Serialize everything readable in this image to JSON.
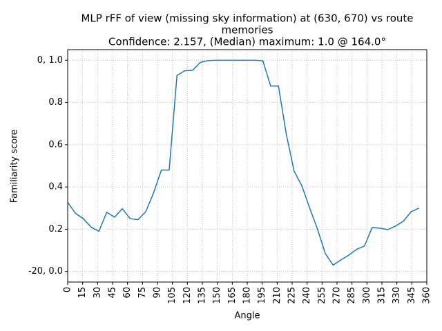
{
  "chart_data": {
    "type": "line",
    "title": [
      "MLP rFF of view (missing sky information) at (630, 670) vs route",
      "memories",
      "Confidence: 2.157, (Median) maximum: 1.0 @ 164.0°"
    ],
    "x_label": "Angle",
    "y_label": "Familiarity score",
    "x": [
      0,
      7.83,
      15.65,
      23.48,
      31.3,
      39.13,
      46.96,
      54.78,
      62.61,
      70.43,
      78.26,
      86.09,
      93.91,
      101.74,
      109.57,
      117.39,
      125.22,
      133.04,
      140.87,
      148.7,
      156.52,
      164.35,
      172.17,
      180,
      187.83,
      195.65,
      203.48,
      211.3,
      219.13,
      226.96,
      234.78,
      242.61,
      250.43,
      258.26,
      266.09,
      273.91,
      281.74,
      289.57,
      297.39,
      305.22,
      313.04,
      320.87,
      328.7,
      336.52,
      344.35,
      352.17
    ],
    "series": [
      {
        "color": "#1f77b4",
        "values": [
          0.327,
          0.275,
          0.25,
          0.21,
          0.19,
          0.28,
          0.257,
          0.297,
          0.25,
          0.245,
          0.283,
          0.372,
          0.48,
          0.48,
          0.928,
          0.95,
          0.952,
          0.99,
          0.998,
          1.0,
          1.0,
          1.0,
          1.0,
          1.0,
          1.0,
          0.997,
          0.878,
          0.878,
          0.65,
          0.475,
          0.405,
          0.3,
          0.2,
          0.085,
          0.03,
          0.055,
          0.077,
          0.105,
          0.12,
          0.208,
          0.205,
          0.198,
          0.215,
          0.238,
          0.283,
          0.3
        ]
      }
    ],
    "xlim": [
      0,
      360
    ],
    "xticks": [
      0,
      15,
      30,
      45,
      60,
      75,
      90,
      105,
      120,
      135,
      150,
      165,
      180,
      195,
      210,
      225,
      240,
      255,
      270,
      285,
      300,
      315,
      330,
      345,
      360
    ],
    "ylim": [
      -0.05,
      1.05
    ],
    "yticks": [
      {
        "value": 0,
        "label": "-20, 0.0"
      },
      0.2,
      0.4,
      0.6,
      0.8,
      {
        "value": 1,
        "label": "0, 1.0"
      }
    ],
    "grid": true
  }
}
